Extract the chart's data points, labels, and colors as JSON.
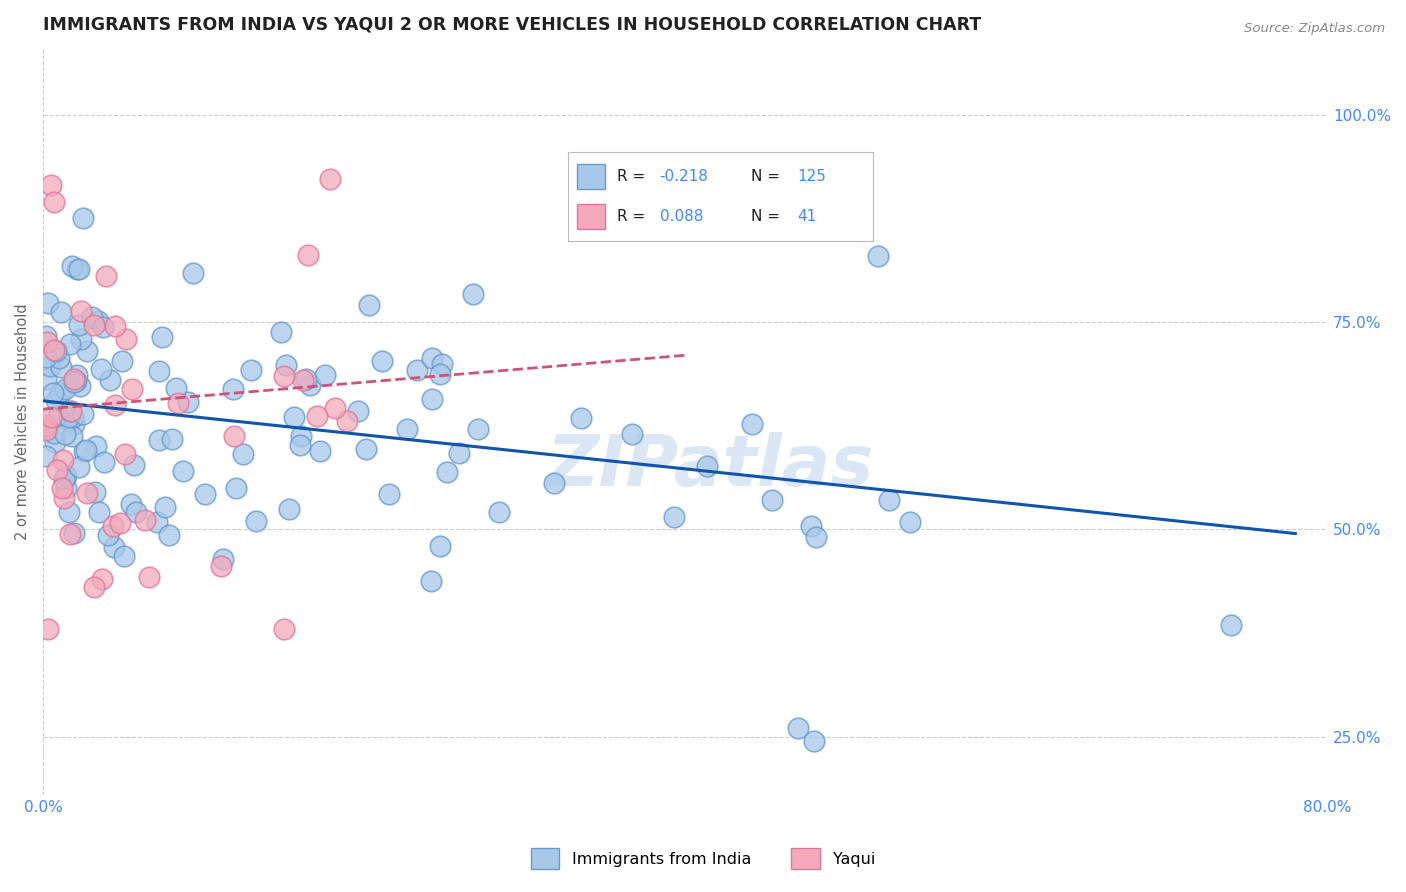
{
  "title": "IMMIGRANTS FROM INDIA VS YAQUI 2 OR MORE VEHICLES IN HOUSEHOLD CORRELATION CHART",
  "source_text": "Source: ZipAtlas.com",
  "ylabel": "2 or more Vehicles in Household",
  "xlim": [
    0.0,
    0.8
  ],
  "ylim": [
    0.18,
    1.08
  ],
  "india_trend_x": [
    0.0,
    0.78
  ],
  "india_trend_y": [
    0.655,
    0.495
  ],
  "yaqui_trend_x": [
    0.0,
    0.4
  ],
  "yaqui_trend_y": [
    0.645,
    0.71
  ],
  "india_color": "#a8c8ea",
  "india_edge": "#6699cc",
  "yaqui_color": "#f4aabb",
  "yaqui_edge": "#dd7799",
  "india_trend_color": "#1155aa",
  "yaqui_trend_color": "#cc5577",
  "grid_color": "#cccccc",
  "watermark_color": "#ccddf0",
  "background_color": "#ffffff",
  "title_color": "#222222",
  "title_fontsize": 12.5,
  "tick_color": "#4488ff",
  "source_color": "#888888",
  "legend_R1": "-0.218",
  "legend_N1": "125",
  "legend_R2": "0.088",
  "legend_N2": "41",
  "legend_label1": "Immigrants from India",
  "legend_label2": "Yaqui"
}
